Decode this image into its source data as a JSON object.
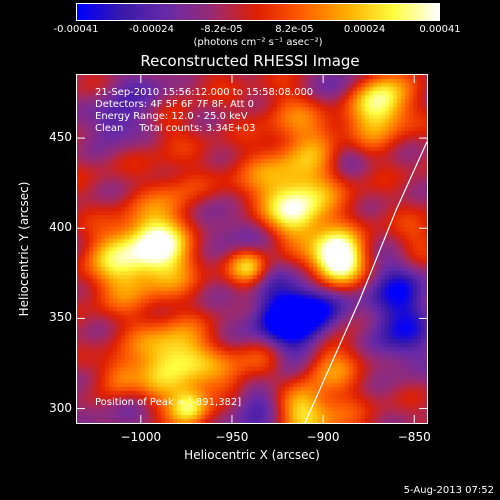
{
  "colorbar": {
    "tick_labels": [
      "-0.00041",
      "-0.00024",
      "-8.2e-05",
      "8.2e-05",
      "0.00024",
      "0.00041"
    ],
    "tick_values": [
      -0.00041,
      -0.00024,
      -8.2e-05,
      8.2e-05,
      0.00024,
      0.00041
    ],
    "range": [
      -0.00041,
      0.00041
    ],
    "units": "(photons cm⁻² s⁻¹ asec⁻²)",
    "stops": [
      "#0000ff",
      "#3b1aa8",
      "#6a2ba8",
      "#9a2a70",
      "#e02000",
      "#ff6000",
      "#ffb000",
      "#ffff40",
      "#ffffff"
    ]
  },
  "title": "Reconstructed RHESSI Image",
  "info": {
    "time_range": "21-Sep-2010 15:56:12.000 to 15:58:08.000",
    "detectors": "Detectors: 4F 5F 6F 7F 8F, Att 0",
    "energy_range": "Energy Range: 12.0 - 25.0 keV",
    "method_counts": "Clean     Total counts: 3.34E+03",
    "peak": "Position of Peak = [-891,382]"
  },
  "chart_data": {
    "type": "heatmap",
    "title": "Reconstructed RHESSI Image",
    "xlabel": "Heliocentric X (arcsec)",
    "ylabel": "Heliocentric Y (arcsec)",
    "xlim": [
      -1035,
      -843
    ],
    "ylim": [
      292,
      485
    ],
    "x_ticks": [
      -1000,
      -950,
      -900,
      -850
    ],
    "x_tick_labels": [
      "−1000",
      "−950",
      "−900",
      "−850"
    ],
    "y_ticks": [
      300,
      350,
      400,
      450
    ],
    "y_tick_labels": [
      "300",
      "350",
      "400",
      "450"
    ],
    "peak_position": [
      -891,
      382
    ],
    "value_range": [
      -0.00041,
      0.00041
    ],
    "colormap": [
      "#0000ff",
      "#3b1aa8",
      "#6a2ba8",
      "#9a2a70",
      "#e02000",
      "#ff6000",
      "#ffb000",
      "#ffff40",
      "#ffffff"
    ],
    "limb_curve": {
      "x": [
        -910,
        -880,
        -860,
        -843
      ],
      "y": [
        292,
        360,
        410,
        448
      ]
    }
  },
  "date_stamp": "5-Aug-2013 07:52"
}
